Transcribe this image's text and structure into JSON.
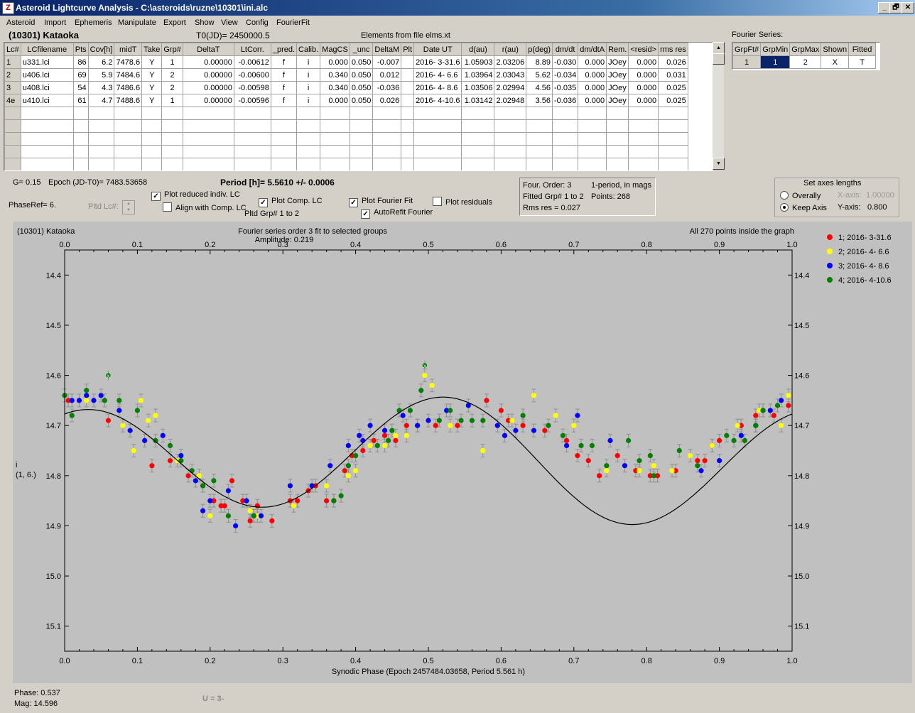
{
  "window": {
    "title": "Asteroid Lightcurve Analysis - C:\\asteroids\\ruzne\\10301\\ini.alc",
    "icon": "app-icon",
    "controls": [
      "_",
      "🗗",
      "✕"
    ]
  },
  "menu": [
    "Asteroid",
    "Import",
    "Ephemeris",
    "Manipulate",
    "Export",
    "Show",
    "View",
    "Config",
    "FourierFit"
  ],
  "header": {
    "asteroid": "(10301) Kataoka",
    "t0": "T0(JD)= 2450000.5",
    "elements": "Elements from file elms.xt",
    "fourier_series_label": "Fourier Series:"
  },
  "lc_table": {
    "columns": [
      "Lc#",
      "LCfilename",
      "Pts",
      "Cov[h]",
      "midT",
      "Take",
      "Grp#",
      "DeltaT",
      "LtCorr.",
      "_pred.",
      "Calib.",
      "MagCS",
      "_unc",
      "DeltaM",
      "Plt",
      "Date UT",
      "d(au)",
      "r(au)",
      "p(deg)",
      "dm/dt",
      "dm/dtA",
      "Rem.",
      "<resid>",
      "rms res"
    ],
    "rows": [
      [
        "1",
        "u331.lci",
        "86",
        "6.2",
        "7478.6",
        "Y",
        "1",
        "0.00000",
        "-0.00612",
        "f",
        "i",
        "0.000",
        "0.050",
        "-0.007",
        "",
        "2016- 3-31.6",
        "1.05903",
        "2.03206",
        "8.89",
        "-0.030",
        "0.000",
        "JOey",
        "0.000",
        "0.026"
      ],
      [
        "2",
        "u406.lci",
        "69",
        "5.9",
        "7484.6",
        "Y",
        "2",
        "0.00000",
        "-0.00600",
        "f",
        "i",
        "0.340",
        "0.050",
        "0.012",
        "",
        "2016- 4- 6.6",
        "1.03964",
        "2.03043",
        "5.62",
        "-0.034",
        "0.000",
        "JOey",
        "0.000",
        "0.031"
      ],
      [
        "3",
        "u408.lci",
        "54",
        "4.3",
        "7486.6",
        "Y",
        "2",
        "0.00000",
        "-0.00598",
        "f",
        "i",
        "0.340",
        "0.050",
        "-0.036",
        "",
        "2016- 4- 8.6",
        "1.03506",
        "2.02994",
        "4.56",
        "-0.035",
        "0.000",
        "JOey",
        "0.000",
        "0.025"
      ],
      [
        "4e",
        "u410.lci",
        "61",
        "4.7",
        "7488.6",
        "Y",
        "1",
        "0.00000",
        "-0.00596",
        "f",
        "i",
        "0.000",
        "0.050",
        "0.026",
        "",
        "2016- 4-10.6",
        "1.03142",
        "2.02948",
        "3.56",
        "-0.036",
        "0.000",
        "JOey",
        "0.000",
        "0.025"
      ]
    ],
    "empty_rows": 6
  },
  "fourier_table": {
    "columns": [
      "GrpFt#",
      "GrpMin",
      "GrpMax",
      "Shown",
      "Fitted"
    ],
    "rows": [
      [
        "1",
        "1",
        "2",
        "X",
        "T"
      ]
    ]
  },
  "controls": {
    "g": "G= 0.15",
    "epoch": "Epoch (JD-T0)= 7483.53658",
    "period": "Period [h]= 5.5610 +/- 0.0006",
    "phaseref": "PhaseRef= 6.",
    "pltd_lc": "Pltd Lc#:",
    "plot_reduced": "Plot reduced indiv. LC",
    "align_comp": "Align with Comp. LC",
    "plot_comp": "Plot Comp. LC",
    "pltd_grp": "Pltd Grp#  1   to   2",
    "plot_fourier": "Plot Fourier Fit",
    "autorefit": "AutoRefit Fourier",
    "plot_residuals": "Plot residuals",
    "checks": {
      "plot_reduced": true,
      "align_comp": false,
      "plot_comp": true,
      "plot_fourier": true,
      "autorefit": true,
      "plot_residuals": false
    }
  },
  "fit_info": {
    "order": "Four. Order:  3",
    "mode": "1-period, in mags",
    "fitted": "Fitted Grp# 1 to 2",
    "points": "Points: 268",
    "rms": "Rms res     = 0.027"
  },
  "axes_panel": {
    "title": "Set axes lengths",
    "overally": "Overally",
    "keep": "Keep Axis",
    "xaxis_label": "X-axis:",
    "xaxis_val": "1.00000",
    "yaxis_label": "Y-axis:",
    "yaxis_val": "0.800",
    "selected": "keep"
  },
  "plot": {
    "name": "(10301) Kataoka",
    "title": "Fourier series order 3 fit to selected groups",
    "amplitude": "Amplitude: 0.219",
    "inside": "All 270 points inside the graph",
    "xlabel": "Synodic Phase (Epoch 2457484.03658, Period 5.561 h)",
    "ylabel": "i",
    "ylabel2": "(1, 6.)"
  },
  "chart_data": {
    "type": "scatter",
    "title": "Fourier series order 3 fit to selected groups",
    "xlabel": "Synodic Phase (Epoch 2457484.03658, Period 5.561 h)",
    "ylabel": "i",
    "xlim": [
      0,
      1
    ],
    "ylim": [
      14.35,
      15.15
    ],
    "y_inverted": true,
    "xticks": [
      "0.0",
      "0.1",
      "0.2",
      "0.3",
      "0.4",
      "0.5",
      "0.6",
      "0.7",
      "0.8",
      "0.9",
      "1.0"
    ],
    "yticks": [
      "14.4",
      "14.5",
      "14.6",
      "14.7",
      "14.8",
      "14.9",
      "15.0",
      "15.1"
    ],
    "legend_position": "right",
    "series": [
      {
        "name": "1; 2016- 3-31.6",
        "color": "#ff0000",
        "x": [
          0.005,
          0.06,
          0.12,
          0.145,
          0.17,
          0.19,
          0.205,
          0.215,
          0.22,
          0.23,
          0.245,
          0.255,
          0.265,
          0.285,
          0.31,
          0.32,
          0.335,
          0.345,
          0.36,
          0.37,
          0.385,
          0.395,
          0.41,
          0.425,
          0.44,
          0.455,
          0.47,
          0.485,
          0.51,
          0.54,
          0.58,
          0.6,
          0.61,
          0.63,
          0.66,
          0.69,
          0.705,
          0.72,
          0.735,
          0.76,
          0.785,
          0.805,
          0.815,
          0.84,
          0.87,
          0.88,
          0.89,
          0.9,
          0.93,
          0.95,
          0.975,
          0.995
        ],
        "y": [
          14.65,
          14.69,
          14.78,
          14.77,
          14.8,
          14.82,
          14.85,
          14.86,
          14.86,
          14.81,
          14.85,
          14.89,
          14.86,
          14.89,
          14.85,
          14.85,
          14.83,
          14.82,
          14.85,
          14.85,
          14.79,
          14.76,
          14.75,
          14.73,
          14.72,
          14.73,
          14.7,
          14.7,
          14.7,
          14.7,
          14.65,
          14.67,
          14.69,
          14.7,
          14.71,
          14.73,
          14.76,
          14.77,
          14.8,
          14.76,
          14.79,
          14.8,
          14.8,
          14.79,
          14.77,
          14.77,
          14.74,
          14.73,
          14.7,
          14.68,
          14.68,
          14.66
        ]
      },
      {
        "name": "2; 2016- 4- 6.6",
        "color": "#ffff00",
        "x": [
          0.03,
          0.08,
          0.095,
          0.105,
          0.115,
          0.125,
          0.155,
          0.185,
          0.2,
          0.255,
          0.265,
          0.315,
          0.36,
          0.39,
          0.4,
          0.42,
          0.44,
          0.455,
          0.47,
          0.495,
          0.505,
          0.53,
          0.575,
          0.615,
          0.645,
          0.675,
          0.7,
          0.745,
          0.79,
          0.81,
          0.835,
          0.86,
          0.89,
          0.925,
          0.955,
          0.985,
          0.995
        ],
        "y": [
          14.65,
          14.7,
          14.75,
          14.65,
          14.69,
          14.68,
          14.77,
          14.8,
          14.88,
          14.87,
          14.88,
          14.86,
          14.82,
          14.8,
          14.79,
          14.74,
          14.74,
          14.72,
          14.72,
          14.6,
          14.62,
          14.7,
          14.75,
          14.69,
          14.64,
          14.68,
          14.7,
          14.79,
          14.79,
          14.78,
          14.79,
          14.76,
          14.74,
          14.7,
          14.67,
          14.7,
          14.64
        ]
      },
      {
        "name": "3; 2016- 4- 8.6",
        "color": "#0000ff",
        "x": [
          0.01,
          0.02,
          0.03,
          0.04,
          0.05,
          0.075,
          0.09,
          0.11,
          0.135,
          0.16,
          0.18,
          0.19,
          0.2,
          0.225,
          0.235,
          0.25,
          0.26,
          0.27,
          0.31,
          0.34,
          0.365,
          0.39,
          0.405,
          0.41,
          0.42,
          0.44,
          0.465,
          0.485,
          0.5,
          0.525,
          0.555,
          0.595,
          0.605,
          0.62,
          0.645,
          0.69,
          0.705,
          0.75,
          0.77,
          0.875,
          0.9,
          0.93,
          0.95,
          0.96,
          0.97,
          0.985
        ],
        "y": [
          14.65,
          14.65,
          14.64,
          14.65,
          14.64,
          14.67,
          14.71,
          14.73,
          14.72,
          14.76,
          14.81,
          14.87,
          14.85,
          14.83,
          14.9,
          14.85,
          14.88,
          14.88,
          14.82,
          14.82,
          14.78,
          14.74,
          14.72,
          14.73,
          14.7,
          14.71,
          14.68,
          14.7,
          14.69,
          14.67,
          14.66,
          14.7,
          14.72,
          14.71,
          14.71,
          14.74,
          14.68,
          14.73,
          14.78,
          14.79,
          14.77,
          14.72,
          14.7,
          14.67,
          14.67,
          14.65
        ]
      },
      {
        "name": "4; 2016- 4-10.6",
        "color": "#008000",
        "x": [
          0.0,
          0.01,
          0.03,
          0.055,
          0.075,
          0.1,
          0.125,
          0.145,
          0.16,
          0.175,
          0.19,
          0.205,
          0.225,
          0.26,
          0.37,
          0.38,
          0.39,
          0.4,
          0.43,
          0.445,
          0.45,
          0.46,
          0.475,
          0.49,
          0.515,
          0.53,
          0.545,
          0.56,
          0.575,
          0.63,
          0.665,
          0.685,
          0.71,
          0.725,
          0.745,
          0.775,
          0.79,
          0.805,
          0.81,
          0.845,
          0.87,
          0.91,
          0.92,
          0.935,
          0.95,
          0.96,
          0.98
        ],
        "y": [
          14.64,
          14.68,
          14.63,
          14.65,
          14.65,
          14.67,
          14.73,
          14.74,
          14.77,
          14.79,
          14.82,
          14.81,
          14.88,
          14.88,
          14.85,
          14.84,
          14.78,
          14.76,
          14.74,
          14.73,
          14.71,
          14.67,
          14.67,
          14.63,
          14.69,
          14.67,
          14.69,
          14.69,
          14.69,
          14.68,
          14.7,
          14.72,
          14.74,
          14.74,
          14.78,
          14.73,
          14.77,
          14.76,
          14.8,
          14.75,
          14.78,
          14.72,
          14.73,
          14.73,
          14.7,
          14.67,
          14.66
        ]
      }
    ],
    "comp_points": {
      "x": [
        0.06,
        0.495
      ],
      "y": [
        14.6,
        14.58
      ]
    },
    "fourier_fit": {
      "mean": 14.768,
      "a1": 0.015,
      "b1": -0.015,
      "a2": -0.106,
      "b2": -0.036
    }
  },
  "status": {
    "phase": "Phase:  0.537",
    "mag": "Mag:    14.596",
    "u": "U = 3-"
  }
}
